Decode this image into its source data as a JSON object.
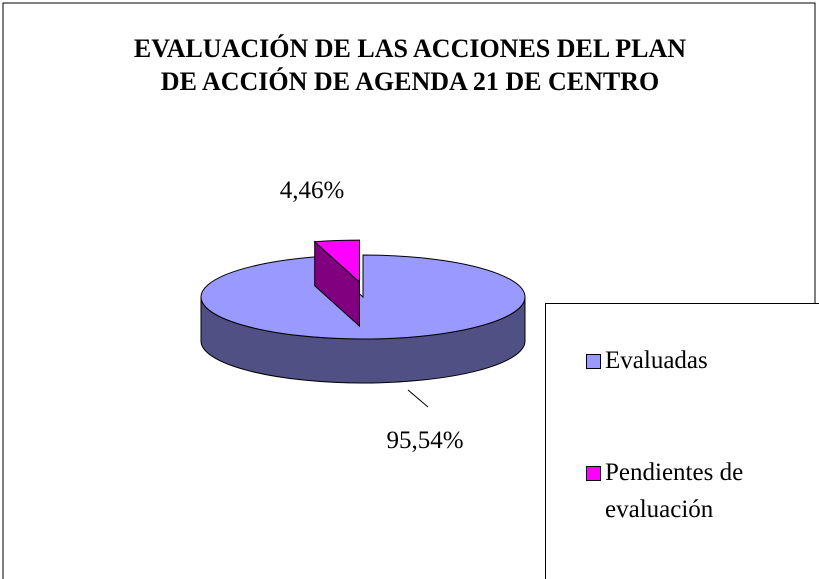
{
  "chart_data": {
    "type": "pie",
    "title": [
      "EVALUACIÓN DE LAS ACCIONES DEL PLAN",
      "DE ACCIÓN DE AGENDA 21 DE CENTRO"
    ],
    "categories": [
      "Evaluadas",
      "Pendientes de evaluación"
    ],
    "values": [
      95.54,
      4.46
    ],
    "value_labels": [
      "95,54%",
      "4,46%"
    ],
    "colors": [
      "#9999ff",
      "#ff00ff"
    ],
    "legend": "right"
  }
}
